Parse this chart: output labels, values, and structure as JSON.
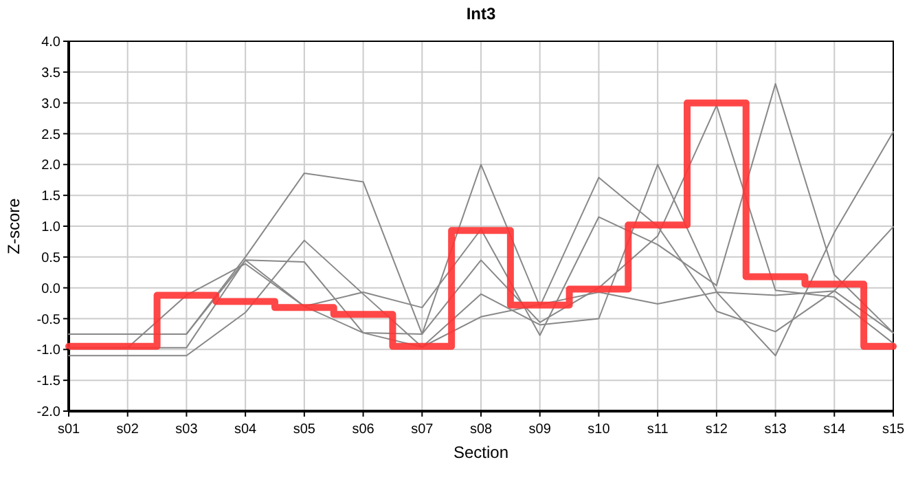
{
  "chart_data": {
    "type": "line",
    "title": "Int3",
    "xlabel": "Section",
    "ylabel": "Z-score",
    "categories": [
      "s01",
      "s02",
      "s03",
      "s04",
      "s05",
      "s06",
      "s07",
      "s08",
      "s09",
      "s10",
      "s11",
      "s12",
      "s13",
      "s14",
      "s15"
    ],
    "ylim": [
      -2,
      4
    ],
    "yticks": [
      {
        "value": -2,
        "label": "-2.0"
      },
      {
        "value": -1.5,
        "label": "-1.5"
      },
      {
        "value": -1,
        "label": "-1.0"
      },
      {
        "value": -0.5,
        "label": "-0.5"
      },
      {
        "value": 0,
        "label": "0.0"
      },
      {
        "value": 0.5,
        "label": "0.5"
      },
      {
        "value": 1,
        "label": "1.0"
      },
      {
        "value": 1.5,
        "label": "1.5"
      },
      {
        "value": 2,
        "label": "2.0"
      },
      {
        "value": 2.5,
        "label": "2.5"
      },
      {
        "value": 3,
        "label": "3.0"
      },
      {
        "value": 3.5,
        "label": "3.5"
      },
      {
        "value": 4,
        "label": "4.0"
      }
    ],
    "grid": true,
    "marker": "none",
    "line_style": "solid",
    "series": [
      {
        "color": "#888888",
        "values": [
          -0.75,
          -0.75,
          -0.75,
          0.5,
          1.86,
          1.72,
          -0.75,
          2.0,
          -0.3,
          1.79,
          1.0,
          -0.38,
          -0.71,
          -0.05,
          -0.73
        ]
      },
      {
        "color": "#888888",
        "values": [
          -0.75,
          -0.75,
          -0.75,
          0.45,
          0.42,
          -0.73,
          -0.75,
          0.45,
          -0.56,
          0.0,
          0.84,
          2.96,
          -0.04,
          -0.15,
          -0.9
        ]
      },
      {
        "color": "#888888",
        "values": [
          -0.97,
          -0.97,
          -0.12,
          0.39,
          -0.3,
          -0.07,
          -0.32,
          0.95,
          -0.77,
          1.15,
          0.7,
          0.04,
          3.31,
          0.21,
          -0.73
        ]
      },
      {
        "color": "#888888",
        "values": [
          -1.1,
          -1.1,
          -1.1,
          -0.4,
          0.77,
          -0.1,
          -0.96,
          -0.1,
          -0.6,
          -0.5,
          2.0,
          -0.07,
          -1.1,
          0.9,
          2.53
        ]
      },
      {
        "color": "#888888",
        "values": [
          -0.97,
          -0.97,
          -0.97,
          0.45,
          -0.3,
          -0.73,
          -0.96,
          -0.47,
          -0.27,
          -0.07,
          -0.26,
          -0.07,
          -0.12,
          -0.05,
          0.99
        ]
      },
      {
        "type": "step",
        "color": "#ff3333",
        "values": [
          -0.95,
          -0.95,
          -0.12,
          -0.22,
          -0.32,
          -0.43,
          -0.95,
          0.93,
          -0.28,
          -0.02,
          1.02,
          3.0,
          0.18,
          0.06,
          -0.95
        ]
      }
    ]
  }
}
